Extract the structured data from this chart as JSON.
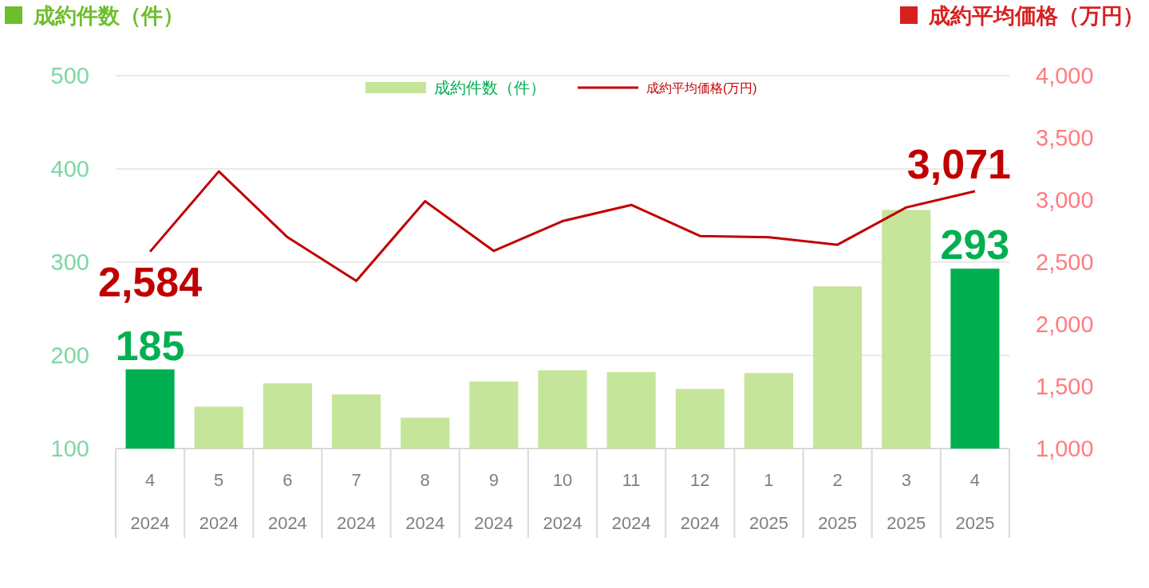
{
  "chart_data": {
    "type": "bar",
    "ylabel": "成約件数（件）",
    "y2label": "成約平均価格（万円）",
    "categories": [
      "4\n2024",
      "5\n2024",
      "6\n2024",
      "7\n2024",
      "8\n2024",
      "9\n2024",
      "10\n2024",
      "11\n2024",
      "12\n2024",
      "1\n2025",
      "2\n2025",
      "3\n2025",
      "4\n2025"
    ],
    "series": [
      {
        "name": "成約件数（件）",
        "color": "#c5e59b",
        "colors": [
          "#00b050",
          "#c5e59b",
          "#c5e59b",
          "#c5e59b",
          "#c5e59b",
          "#c5e59b",
          "#c5e59b",
          "#c5e59b",
          "#c5e59b",
          "#c5e59b",
          "#c5e59b",
          "#c5e59b",
          "#00b050"
        ],
        "values": [
          185,
          145,
          170,
          158,
          133,
          172,
          184,
          182,
          164,
          181,
          274,
          356,
          293
        ],
        "value_labels": [
          "185",
          null,
          null,
          null,
          null,
          null,
          null,
          null,
          null,
          null,
          null,
          null,
          "293"
        ]
      },
      {
        "name": "成約平均価格(万円)",
        "type": "line",
        "axis": "y2",
        "color": "#c00000",
        "values": [
          2584,
          3230,
          2700,
          2350,
          2990,
          2590,
          2830,
          2960,
          2710,
          2700,
          2640,
          2940,
          3071
        ],
        "value_labels": [
          "2,584",
          null,
          null,
          null,
          null,
          null,
          null,
          null,
          null,
          null,
          null,
          null,
          "3,071"
        ]
      }
    ],
    "ylim": [
      100,
      500
    ],
    "yticks": [
      100,
      200,
      300,
      400,
      500
    ],
    "y2lim": [
      1000,
      4000
    ],
    "y2ticks": [
      {
        "value": 1000,
        "label": "1,000"
      },
      {
        "value": 1500,
        "label": "1,500"
      },
      {
        "value": 2000,
        "label": "2,000"
      },
      {
        "value": 2500,
        "label": "2,500"
      },
      {
        "value": 3000,
        "label": "3,000"
      },
      {
        "value": 3500,
        "label": "3,500"
      },
      {
        "value": 4000,
        "label": "4,000"
      }
    ],
    "grid": "y",
    "legend": "top"
  }
}
